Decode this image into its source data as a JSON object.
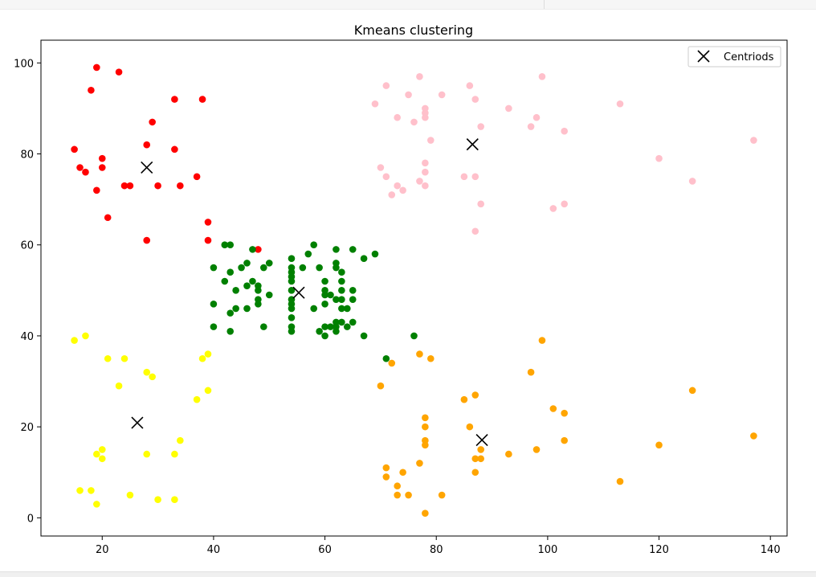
{
  "chart_data": {
    "type": "scatter",
    "title": "Kmeans clustering",
    "xlabel": "",
    "ylabel": "",
    "xlim": [
      9,
      143
    ],
    "ylim": [
      -4,
      105
    ],
    "xticks": [
      20,
      40,
      60,
      80,
      100,
      120,
      140
    ],
    "yticks": [
      0,
      20,
      40,
      60,
      80,
      100
    ],
    "grid": false,
    "legend_position": "top-right",
    "legend_entries": [
      "Centriods"
    ],
    "series": [
      {
        "color": "#ff0000",
        "points": [
          [
            19,
            99
          ],
          [
            23,
            98
          ],
          [
            18,
            94
          ],
          [
            33,
            92
          ],
          [
            38,
            92
          ],
          [
            29,
            87
          ],
          [
            15,
            81
          ],
          [
            28,
            82
          ],
          [
            33,
            81
          ],
          [
            20,
            79
          ],
          [
            16,
            77
          ],
          [
            17,
            76
          ],
          [
            20,
            77
          ],
          [
            37,
            75
          ],
          [
            19,
            72
          ],
          [
            24,
            73
          ],
          [
            25,
            73
          ],
          [
            30,
            73
          ],
          [
            34,
            73
          ],
          [
            21,
            66
          ],
          [
            39,
            65
          ],
          [
            28,
            61
          ],
          [
            39,
            61
          ],
          [
            48,
            59
          ]
        ]
      },
      {
        "color": "#008000",
        "points": [
          [
            42,
            60
          ],
          [
            43,
            60
          ],
          [
            58,
            60
          ],
          [
            47,
            59
          ],
          [
            62,
            59
          ],
          [
            65,
            59
          ],
          [
            69,
            58
          ],
          [
            57,
            58
          ],
          [
            67,
            57
          ],
          [
            54,
            57
          ],
          [
            46,
            56
          ],
          [
            50,
            56
          ],
          [
            62,
            56
          ],
          [
            45,
            55
          ],
          [
            40,
            55
          ],
          [
            49,
            55
          ],
          [
            54,
            55
          ],
          [
            56,
            55
          ],
          [
            59,
            55
          ],
          [
            62,
            55
          ],
          [
            43,
            54
          ],
          [
            54,
            54
          ],
          [
            63,
            54
          ],
          [
            54,
            53
          ],
          [
            54,
            52
          ],
          [
            42,
            52
          ],
          [
            47,
            52
          ],
          [
            48,
            51
          ],
          [
            46,
            51
          ],
          [
            60,
            52
          ],
          [
            63,
            52
          ],
          [
            44,
            50
          ],
          [
            48,
            50
          ],
          [
            54,
            50
          ],
          [
            60,
            50
          ],
          [
            63,
            50
          ],
          [
            65,
            50
          ],
          [
            50,
            49
          ],
          [
            60,
            49
          ],
          [
            61,
            49
          ],
          [
            62,
            48
          ],
          [
            63,
            48
          ],
          [
            65,
            48
          ],
          [
            48,
            48
          ],
          [
            54,
            48
          ],
          [
            40,
            47
          ],
          [
            48,
            47
          ],
          [
            54,
            47
          ],
          [
            60,
            47
          ],
          [
            44,
            46
          ],
          [
            46,
            46
          ],
          [
            54,
            46
          ],
          [
            58,
            46
          ],
          [
            63,
            46
          ],
          [
            64,
            46
          ],
          [
            43,
            45
          ],
          [
            54,
            44
          ],
          [
            62,
            43
          ],
          [
            63,
            43
          ],
          [
            65,
            43
          ],
          [
            40,
            42
          ],
          [
            49,
            42
          ],
          [
            54,
            42
          ],
          [
            60,
            42
          ],
          [
            61,
            42
          ],
          [
            62,
            42
          ],
          [
            64,
            42
          ],
          [
            43,
            41
          ],
          [
            54,
            41
          ],
          [
            59,
            41
          ],
          [
            62,
            41
          ],
          [
            60,
            40
          ],
          [
            67,
            40
          ],
          [
            76,
            40
          ],
          [
            71,
            35
          ]
        ]
      },
      {
        "color": "#ffc0cb",
        "points": [
          [
            71,
            95
          ],
          [
            86,
            95
          ],
          [
            77,
            97
          ],
          [
            99,
            97
          ],
          [
            75,
            93
          ],
          [
            81,
            93
          ],
          [
            87,
            92
          ],
          [
            69,
            91
          ],
          [
            113,
            91
          ],
          [
            93,
            90
          ],
          [
            78,
            90
          ],
          [
            78,
            89
          ],
          [
            73,
            88
          ],
          [
            78,
            88
          ],
          [
            98,
            88
          ],
          [
            76,
            87
          ],
          [
            88,
            86
          ],
          [
            97,
            86
          ],
          [
            103,
            85
          ],
          [
            79,
            83
          ],
          [
            137,
            83
          ],
          [
            120,
            79
          ],
          [
            78,
            78
          ],
          [
            70,
            77
          ],
          [
            78,
            76
          ],
          [
            71,
            75
          ],
          [
            85,
            75
          ],
          [
            87,
            75
          ],
          [
            77,
            74
          ],
          [
            126,
            74
          ],
          [
            73,
            73
          ],
          [
            78,
            73
          ],
          [
            74,
            72
          ],
          [
            72,
            71
          ],
          [
            88,
            69
          ],
          [
            103,
            69
          ],
          [
            101,
            68
          ],
          [
            87,
            63
          ]
        ]
      },
      {
        "color": "#ffff00",
        "points": [
          [
            17,
            40
          ],
          [
            15,
            39
          ],
          [
            21,
            35
          ],
          [
            24,
            35
          ],
          [
            38,
            35
          ],
          [
            39,
            36
          ],
          [
            28,
            32
          ],
          [
            29,
            31
          ],
          [
            23,
            29
          ],
          [
            39,
            28
          ],
          [
            37,
            26
          ],
          [
            34,
            17
          ],
          [
            20,
            15
          ],
          [
            19,
            14
          ],
          [
            28,
            14
          ],
          [
            33,
            14
          ],
          [
            20,
            13
          ],
          [
            16,
            6
          ],
          [
            18,
            6
          ],
          [
            25,
            5
          ],
          [
            30,
            4
          ],
          [
            33,
            4
          ],
          [
            19,
            3
          ]
        ]
      },
      {
        "color": "#ffa500",
        "points": [
          [
            99,
            39
          ],
          [
            77,
            36
          ],
          [
            79,
            35
          ],
          [
            72,
            34
          ],
          [
            97,
            32
          ],
          [
            70,
            29
          ],
          [
            126,
            28
          ],
          [
            87,
            27
          ],
          [
            85,
            26
          ],
          [
            101,
            24
          ],
          [
            103,
            23
          ],
          [
            78,
            22
          ],
          [
            78,
            20
          ],
          [
            86,
            20
          ],
          [
            137,
            18
          ],
          [
            78,
            17
          ],
          [
            103,
            17
          ],
          [
            78,
            16
          ],
          [
            120,
            16
          ],
          [
            98,
            15
          ],
          [
            88,
            15
          ],
          [
            93,
            14
          ],
          [
            87,
            13
          ],
          [
            88,
            13
          ],
          [
            77,
            12
          ],
          [
            71,
            11
          ],
          [
            74,
            10
          ],
          [
            87,
            10
          ],
          [
            71,
            9
          ],
          [
            113,
            8
          ],
          [
            73,
            7
          ],
          [
            73,
            5
          ],
          [
            75,
            5
          ],
          [
            81,
            5
          ],
          [
            78,
            1
          ]
        ]
      },
      {
        "name": "Centriods",
        "marker": "x",
        "color": "#000000",
        "points": [
          [
            86.5,
            82.1
          ],
          [
            55.3,
            49.5
          ],
          [
            28.0,
            77.0
          ],
          [
            26.3,
            20.9
          ],
          [
            88.2,
            17.1
          ]
        ]
      }
    ]
  }
}
